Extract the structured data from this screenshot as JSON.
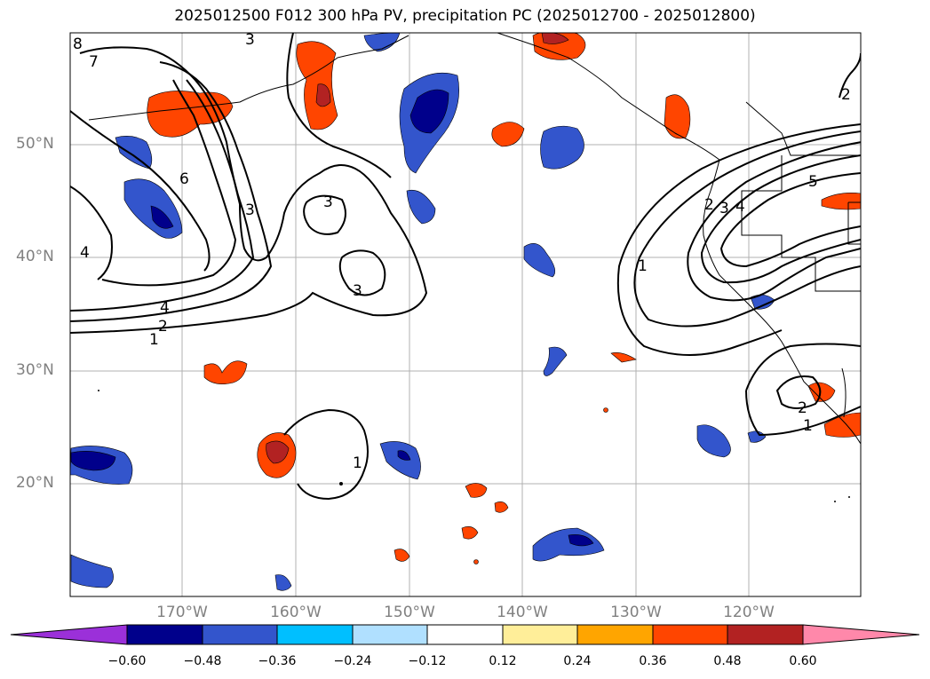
{
  "title": "2025012500 F012 300 hPa PV, precipitation PC (2025012700 - 2025012800)",
  "map": {
    "lat_labels": [
      "50°N",
      "40°N",
      "30°N",
      "20°N"
    ],
    "lon_labels": [
      "170°W",
      "160°W",
      "150°W",
      "140°W",
      "130°W",
      "120°W"
    ],
    "pv_contour_labels": [
      "8",
      "7",
      "6",
      "5",
      "4",
      "3",
      "3",
      "3",
      "3",
      "2",
      "2",
      "2",
      "2",
      "1",
      "1",
      "1",
      "1",
      "4"
    ]
  },
  "colorbar": {
    "ticks": [
      "−0.60",
      "−0.48",
      "−0.36",
      "−0.24",
      "−0.12",
      "0.12",
      "0.24",
      "0.36",
      "0.48",
      "0.60"
    ],
    "colors": [
      "#9b30d9",
      "#00008b",
      "#3355cc",
      "#00bfff",
      "#b0e0ff",
      "#ffffff",
      "#ffee99",
      "#ffa500",
      "#ff4500",
      "#b22222",
      "#ff88aa"
    ]
  }
}
